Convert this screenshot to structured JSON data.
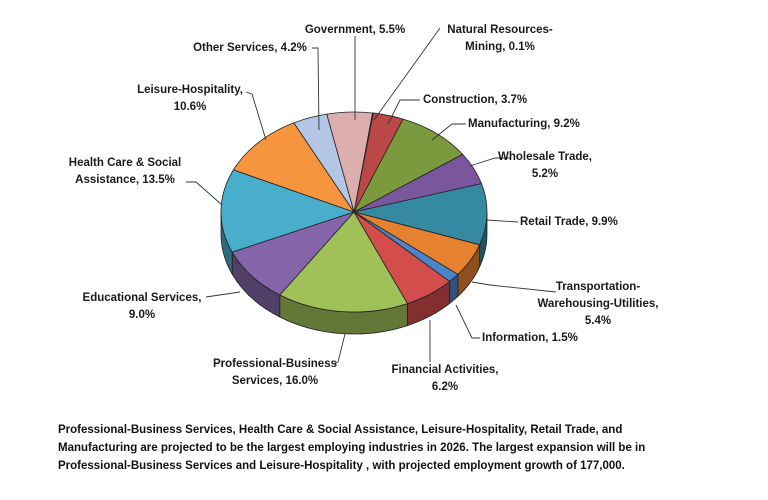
{
  "chart_data": {
    "type": "pie",
    "style": "3d",
    "title": "",
    "slices": [
      {
        "label": "Natural Resources-Mining, 0.1%",
        "lines": [
          "Natural Resources-",
          "Mining, 0.1%"
        ],
        "value": 0.1,
        "color": "#5a2e2e"
      },
      {
        "label": "Construction, 3.7%",
        "lines": [
          "Construction, 3.7%"
        ],
        "value": 3.7,
        "color": "#b94846"
      },
      {
        "label": "Manufacturing, 9.2%",
        "lines": [
          "Manufacturing, 9.2%"
        ],
        "value": 9.2,
        "color": "#7a9a3d"
      },
      {
        "label": "Wholesale Trade, 5.2%",
        "lines": [
          "Wholesale Trade,",
          "5.2%"
        ],
        "value": 5.2,
        "color": "#7a579c"
      },
      {
        "label": "Retail Trade, 9.9%",
        "lines": [
          "Retail Trade, 9.9%"
        ],
        "value": 9.9,
        "color": "#3589a3"
      },
      {
        "label": "Transportation-Warehousing-Utilities, 5.4%",
        "lines": [
          "Transportation-",
          "Warehousing-Utilities,",
          "5.4%"
        ],
        "value": 5.4,
        "color": "#e5812f"
      },
      {
        "label": "Information, 1.5%",
        "lines": [
          "Information, 1.5%"
        ],
        "value": 1.5,
        "color": "#4d85c9"
      },
      {
        "label": "Financial Activities, 6.2%",
        "lines": [
          "Financial Activities,",
          "6.2%"
        ],
        "value": 6.2,
        "color": "#d24d4b"
      },
      {
        "label": "Professional-Business Services, 16.0%",
        "lines": [
          "Professional-Business",
          "Services, 16.0%"
        ],
        "value": 16.0,
        "color": "#9fc158"
      },
      {
        "label": "Educational Services, 9.0%",
        "lines": [
          "Educational Services,",
          "9.0%"
        ],
        "value": 9.0,
        "color": "#8565aa"
      },
      {
        "label": "Health Care & Social Assistance, 13.5%",
        "lines": [
          "Health Care & Social",
          "Assistance, 13.5%"
        ],
        "value": 13.5,
        "color": "#48aecb"
      },
      {
        "label": "Leisure-Hospitality, 10.6%",
        "lines": [
          "Leisure-Hospitality,",
          "10.6%"
        ],
        "value": 10.6,
        "color": "#f7953f"
      },
      {
        "label": "Other Services, 4.2%",
        "lines": [
          "Other Services, 4.2%"
        ],
        "value": 4.2,
        "color": "#b4c6e6"
      },
      {
        "label": "Government, 5.5%",
        "lines": [
          "Government, 5.5%"
        ],
        "value": 5.5,
        "color": "#dcaeae"
      }
    ]
  },
  "caption": [
    "Professional-Business Services, Health Care & Social Assistance, Leisure-Hospitality, Retail Trade, and",
    "Manufacturing are projected to be the largest employing industries in 2026.  The largest expansion will be in",
    "Professional-Business Services and Leisure-Hospitality , with projected employment growth of 177,000."
  ]
}
